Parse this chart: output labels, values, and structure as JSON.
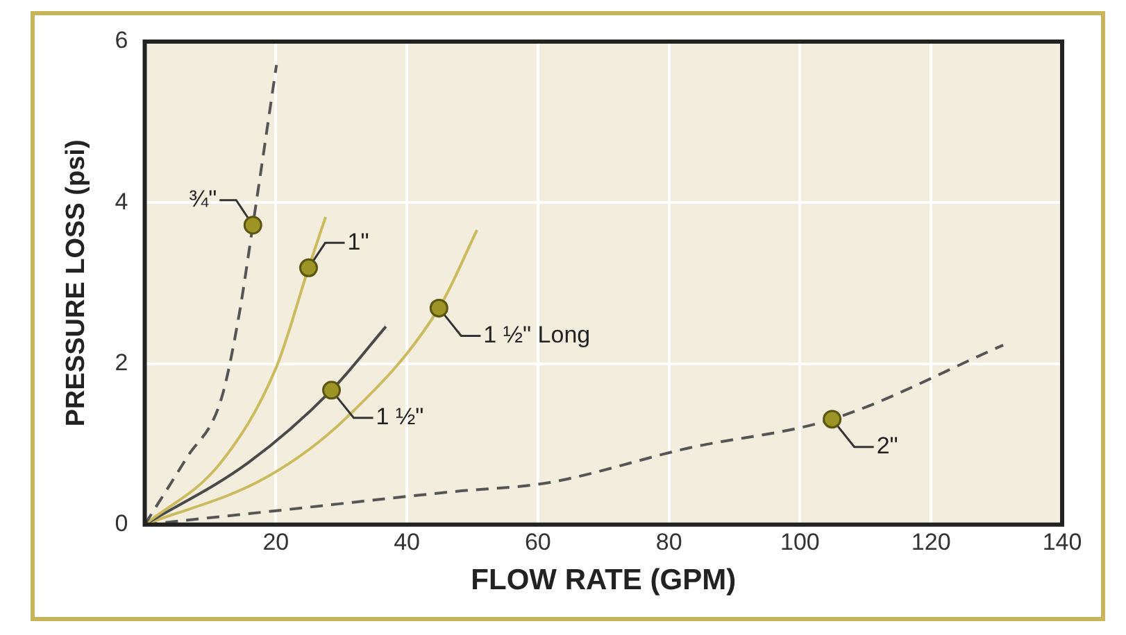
{
  "chart_data": {
    "type": "line",
    "xlabel": "FLOW RATE (GPM)",
    "ylabel": "PRESSURE LOSS (psi)",
    "xlim": [
      0,
      140
    ],
    "xticks": [
      20,
      40,
      60,
      80,
      100,
      120,
      140
    ],
    "ylim": [
      0,
      6
    ],
    "yticks": [
      0,
      2,
      4,
      6
    ],
    "grid": true,
    "marker": "none",
    "series": [
      {
        "color": "#555555",
        "line_style": "dashed",
        "x": [
          0,
          6.4,
          11.6,
          14.3,
          16.5,
          20.1
        ],
        "values": [
          0,
          0.83,
          1.54,
          2.56,
          3.72,
          5.71
        ]
      },
      {
        "color": "#cbbb5e",
        "line_style": "solid",
        "x": [
          0,
          11.6,
          20.1,
          25,
          27.6
        ],
        "values": [
          0,
          0.77,
          1.96,
          3.19,
          3.82
        ]
      },
      {
        "color": "#4a4a4a",
        "line_style": "solid",
        "x": [
          0,
          15.8,
          28.5,
          36.8
        ],
        "values": [
          0,
          0.77,
          1.67,
          2.46
        ]
      },
      {
        "color": "#cbbb5e",
        "line_style": "solid",
        "x": [
          0,
          18.6,
          30.8,
          44.9,
          50.7
        ],
        "values": [
          0,
          0.59,
          1.33,
          2.69,
          3.66
        ]
      },
      {
        "color": "#555555",
        "line_style": "dashed",
        "x": [
          0,
          18.6,
          47.1,
          61.5,
          82.9,
          104.9,
          131
        ],
        "values": [
          0,
          0.16,
          0.41,
          0.52,
          0.95,
          1.31,
          2.23
        ]
      }
    ],
    "annotations": [
      {
        "text": "¾\"",
        "x": 16.5,
        "y": 3.72
      },
      {
        "text": "1\"",
        "x": 25,
        "y": 3.19
      },
      {
        "text": "1 ½\" Long",
        "x": 44.9,
        "y": 2.69
      },
      {
        "text": "1 ½\"",
        "x": 28.5,
        "y": 1.67
      },
      {
        "text": "2\"",
        "x": 104.9,
        "y": 1.31
      }
    ]
  }
}
